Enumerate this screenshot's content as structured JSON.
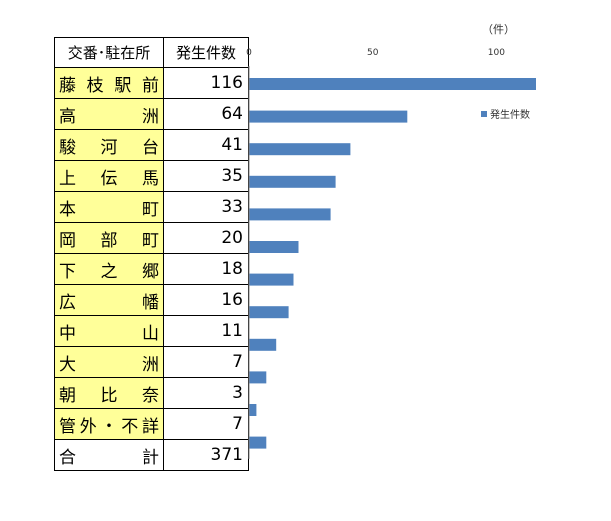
{
  "table": {
    "header": {
      "name": "交番･駐在所",
      "value": "発生件数"
    },
    "rows": [
      {
        "name": "藤枝駅前",
        "value": "116"
      },
      {
        "name": "高洲",
        "value": "64"
      },
      {
        "name": "駿河台",
        "value": "41"
      },
      {
        "name": "上伝馬",
        "value": "35"
      },
      {
        "name": "本町",
        "value": "33"
      },
      {
        "name": "岡部町",
        "value": "20"
      },
      {
        "name": "下之郷",
        "value": "18"
      },
      {
        "name": "広幡",
        "value": "16"
      },
      {
        "name": "中山",
        "value": "11"
      },
      {
        "name": "大洲",
        "value": "7"
      },
      {
        "name": "朝比奈",
        "value": "3"
      },
      {
        "name": "管外・不詳",
        "value": "7"
      }
    ],
    "total": {
      "name": "合計",
      "value": "371"
    }
  },
  "chart_data": {
    "type": "bar",
    "orientation": "horizontal",
    "categories": [
      "藤枝駅前",
      "高洲",
      "駿河台",
      "上伝馬",
      "本町",
      "岡部町",
      "下之郷",
      "広幡",
      "中山",
      "大洲",
      "朝比奈",
      "管外・不詳"
    ],
    "series": [
      {
        "name": "発生件数",
        "values": [
          116,
          64,
          41,
          35,
          33,
          20,
          18,
          16,
          11,
          7,
          3,
          7
        ],
        "color": "#4f81bd"
      }
    ],
    "x_ticks": [
      0,
      50,
      100
    ],
    "xlim": [
      0,
      116
    ],
    "unit_label": "（件）",
    "legend": {
      "placement": "right",
      "label": "発生件数"
    },
    "grid": false
  }
}
